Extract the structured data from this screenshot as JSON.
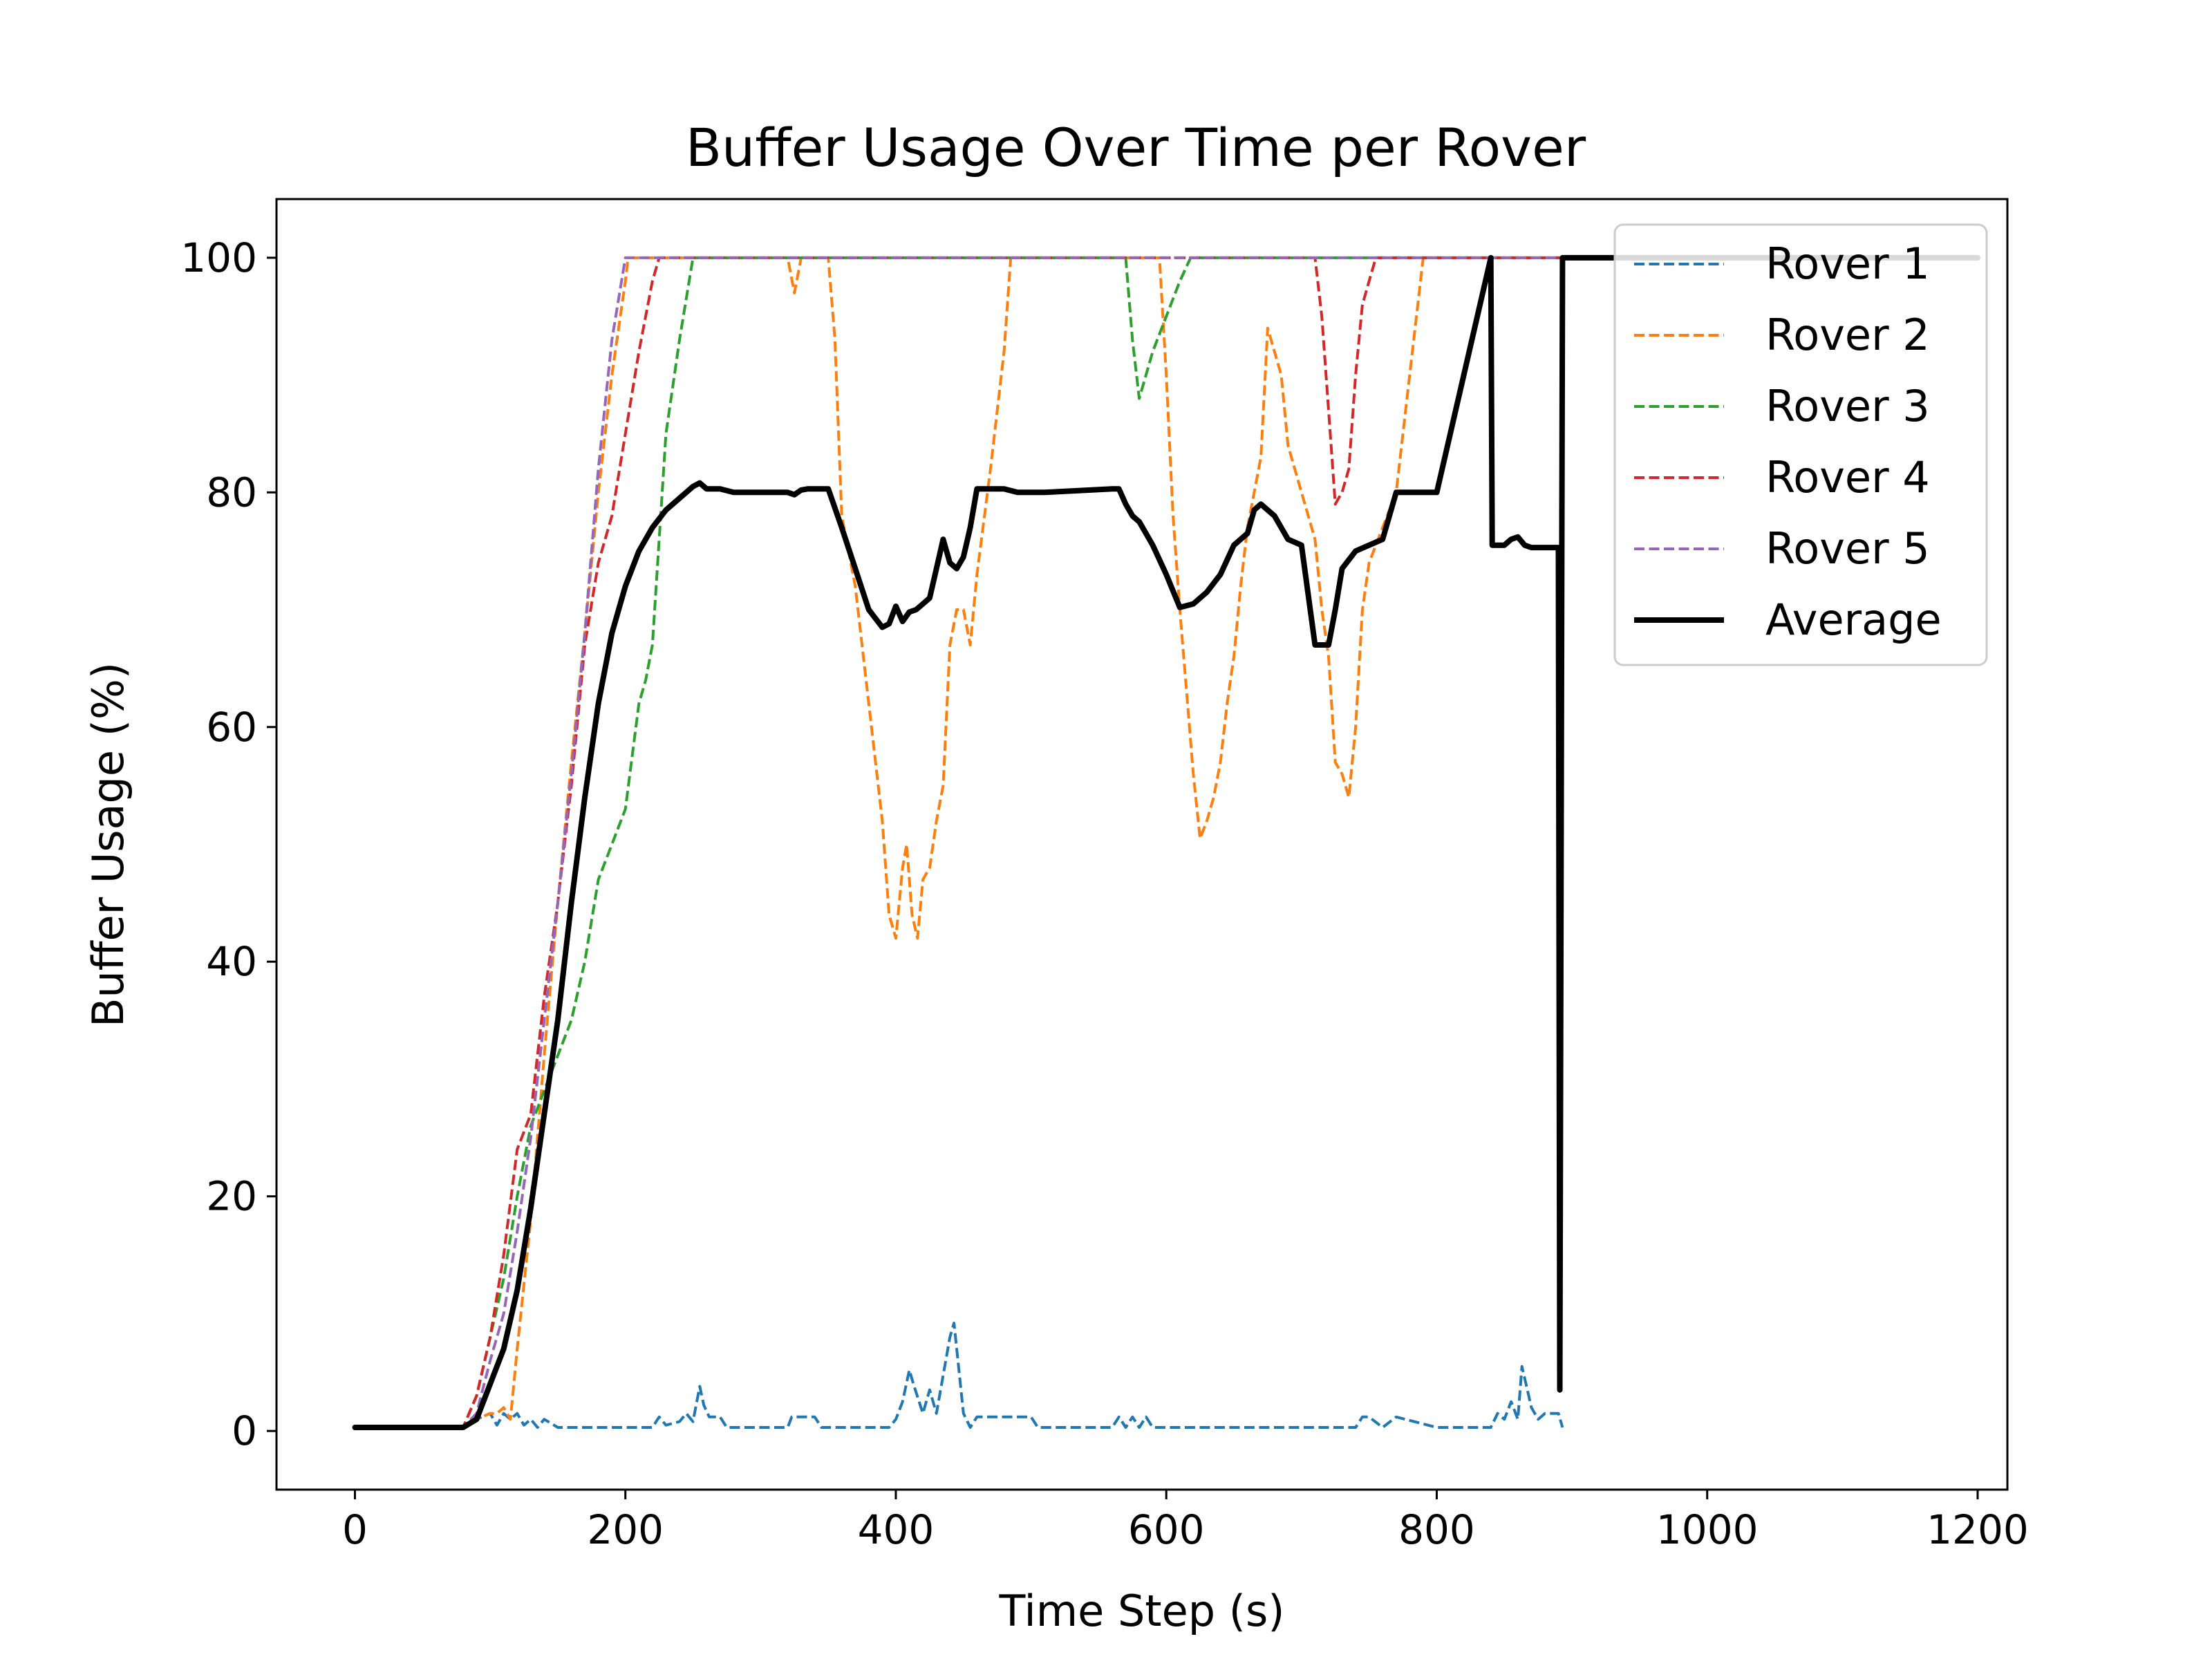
{
  "chart_data": {
    "type": "line",
    "title": "Buffer Usage Over Time per Rover",
    "xlabel": "Time Step (s)",
    "ylabel": "Buffer Usage (%)",
    "xlim": [
      -58,
      1222
    ],
    "ylim": [
      -5,
      105
    ],
    "xticks": [
      0,
      200,
      400,
      600,
      800,
      1000,
      1200
    ],
    "yticks": [
      0,
      20,
      40,
      60,
      80,
      100
    ],
    "grid": false,
    "legend_position": "top-right",
    "series": [
      {
        "name": "Rover 1",
        "color": "#1f77b4",
        "style": "dashed",
        "x": [
          0,
          80,
          90,
          100,
          105,
          110,
          115,
          120,
          125,
          130,
          135,
          140,
          150,
          200,
          220,
          225,
          230,
          240,
          245,
          250,
          255,
          258,
          262,
          265,
          270,
          275,
          280,
          320,
          323,
          340,
          345,
          350,
          395,
          400,
          405,
          410,
          413,
          420,
          425,
          430,
          440,
          443,
          450,
          455,
          460,
          500,
          505,
          560,
          565,
          570,
          575,
          580,
          585,
          590,
          595,
          600,
          610,
          650,
          700,
          740,
          745,
          750,
          760,
          770,
          800,
          840,
          845,
          850,
          855,
          860,
          863,
          866,
          870,
          875,
          880,
          885,
          890,
          893
        ],
        "values": [
          0.3,
          0.3,
          1,
          1.5,
          0.5,
          1.5,
          1,
          1.5,
          0.5,
          1,
          0.3,
          1,
          0.3,
          0.3,
          0.3,
          1.2,
          0.5,
          0.8,
          1.5,
          0.8,
          3.8,
          2.2,
          1.2,
          1.2,
          1.2,
          0.3,
          0.3,
          0.3,
          1.2,
          1.2,
          0.3,
          0.3,
          0.3,
          1,
          2.5,
          5.2,
          4,
          1.5,
          3.5,
          1.5,
          8,
          9.2,
          1.5,
          0.3,
          1.2,
          1.2,
          0.3,
          0.3,
          1.2,
          0.3,
          1.2,
          0.3,
          1.2,
          0.3,
          0.3,
          0.3,
          0.3,
          0.3,
          0.3,
          0.3,
          1.2,
          1.2,
          0.3,
          1.2,
          0.3,
          0.3,
          1.5,
          1,
          2.5,
          1,
          5.5,
          4,
          2,
          1,
          1.5,
          1.5,
          1.5,
          0.3
        ]
      },
      {
        "name": "Rover 2",
        "color": "#ff7f0e",
        "style": "dashed",
        "x": [
          0,
          80,
          85,
          90,
          100,
          105,
          110,
          115,
          120,
          130,
          140,
          150,
          160,
          170,
          180,
          190,
          200,
          202,
          205,
          320,
          325,
          330,
          335,
          340,
          345,
          350,
          355,
          360,
          370,
          380,
          390,
          395,
          400,
          405,
          408,
          412,
          416,
          420,
          425,
          430,
          435,
          440,
          445,
          450,
          455,
          460,
          470,
          480,
          485,
          490,
          595,
          600,
          605,
          610,
          615,
          620,
          625,
          630,
          635,
          640,
          645,
          650,
          655,
          660,
          665,
          670,
          675,
          680,
          685,
          690,
          700,
          710,
          715,
          720,
          725,
          730,
          735,
          740,
          745,
          750,
          760,
          770,
          780,
          790,
          800,
          1200
        ],
        "values": [
          0.3,
          0.3,
          1,
          1,
          1.5,
          1.5,
          2,
          1,
          7,
          18,
          32,
          45,
          57,
          68,
          80,
          90,
          98,
          100,
          100,
          100,
          97,
          100,
          100,
          100,
          100,
          100,
          93,
          78,
          72,
          62,
          52,
          44,
          42,
          48,
          50,
          44,
          42,
          47,
          48,
          52,
          55,
          67,
          70,
          70,
          67,
          73,
          82,
          92,
          100,
          100,
          100,
          90,
          78,
          70,
          63,
          56,
          50.5,
          52,
          54,
          57,
          62,
          66,
          72,
          77,
          80,
          83,
          94,
          92,
          90,
          84,
          80,
          76,
          70,
          66,
          57,
          56,
          54,
          60,
          70,
          74,
          77,
          80,
          90,
          100,
          100,
          100
        ]
      },
      {
        "name": "Rover 3",
        "color": "#2ca02c",
        "style": "dashed",
        "x": [
          0,
          80,
          90,
          100,
          110,
          120,
          130,
          140,
          150,
          160,
          170,
          180,
          190,
          200,
          210,
          215,
          220,
          230,
          240,
          250,
          255,
          570,
          575,
          580,
          590,
          600,
          610,
          618,
          1200
        ],
        "values": [
          0.3,
          0.3,
          3,
          8,
          13,
          20,
          26,
          29,
          32,
          35,
          40,
          47,
          50,
          53,
          62,
          64,
          67,
          85,
          93,
          100,
          100,
          100,
          93,
          88,
          92,
          95,
          98,
          100,
          100
        ]
      },
      {
        "name": "Rover 4",
        "color": "#d62728",
        "style": "dashed",
        "x": [
          0,
          80,
          90,
          100,
          110,
          120,
          130,
          140,
          150,
          160,
          170,
          180,
          190,
          200,
          210,
          220,
          225,
          230,
          710,
          715,
          720,
          725,
          730,
          735,
          740,
          745,
          750,
          755,
          1200
        ],
        "values": [
          0.3,
          0.3,
          3,
          8,
          15,
          24,
          27,
          37,
          45,
          55,
          67,
          74,
          78,
          85,
          92,
          98,
          100,
          100,
          100,
          95,
          87,
          79,
          80,
          82,
          90,
          96,
          98,
          100,
          100
        ]
      },
      {
        "name": "Rover 5",
        "color": "#9467bd",
        "style": "dashed",
        "x": [
          0,
          80,
          90,
          100,
          110,
          120,
          130,
          140,
          150,
          160,
          170,
          180,
          190,
          200,
          205,
          1200
        ],
        "values": [
          0.3,
          0.3,
          1.5,
          6,
          10,
          17,
          25,
          35,
          45,
          56,
          68,
          82,
          93,
          100,
          100,
          100
        ]
      },
      {
        "name": "Average",
        "color": "#000000",
        "style": "solid",
        "x": [
          0,
          80,
          90,
          100,
          110,
          120,
          130,
          140,
          150,
          160,
          170,
          180,
          190,
          200,
          210,
          220,
          230,
          240,
          250,
          255,
          260,
          270,
          280,
          320,
          325,
          330,
          335,
          350,
          360,
          370,
          380,
          390,
          395,
          400,
          405,
          410,
          415,
          420,
          425,
          430,
          435,
          440,
          445,
          450,
          455,
          460,
          470,
          480,
          490,
          500,
          510,
          560,
          565,
          570,
          575,
          580,
          585,
          590,
          600,
          610,
          620,
          630,
          640,
          650,
          660,
          665,
          670,
          675,
          680,
          690,
          700,
          710,
          720,
          725,
          730,
          740,
          750,
          760,
          770,
          780,
          790,
          800,
          840,
          841,
          842,
          850,
          855,
          860,
          865,
          870,
          880,
          890,
          891,
          893,
          895,
          1200
        ],
        "values": [
          0.3,
          0.3,
          1,
          4,
          7,
          12,
          19,
          27,
          35,
          45,
          54,
          62,
          68,
          72,
          75,
          77,
          78.5,
          79.5,
          80.5,
          80.8,
          80.3,
          80.3,
          80,
          80,
          79.8,
          80.2,
          80.3,
          80.3,
          77,
          73.5,
          70,
          68.5,
          68.8,
          70.3,
          69,
          69.8,
          70,
          70.5,
          71,
          73.5,
          76,
          74,
          73.5,
          74.5,
          77,
          80.3,
          80.3,
          80.3,
          80,
          80,
          80,
          80.3,
          80.3,
          79,
          78,
          77.5,
          76.5,
          75.5,
          73,
          70.2,
          70.5,
          71.5,
          73,
          75.5,
          76.5,
          78.5,
          79,
          78.5,
          78,
          76,
          75.5,
          67,
          67,
          70,
          73.5,
          75,
          75.5,
          76,
          80,
          80,
          80,
          80,
          100,
          75.5,
          75.5,
          75.5,
          76,
          76.2,
          75.5,
          75.3,
          75.3,
          75.3,
          3.5,
          100,
          100,
          100
        ]
      }
    ]
  }
}
